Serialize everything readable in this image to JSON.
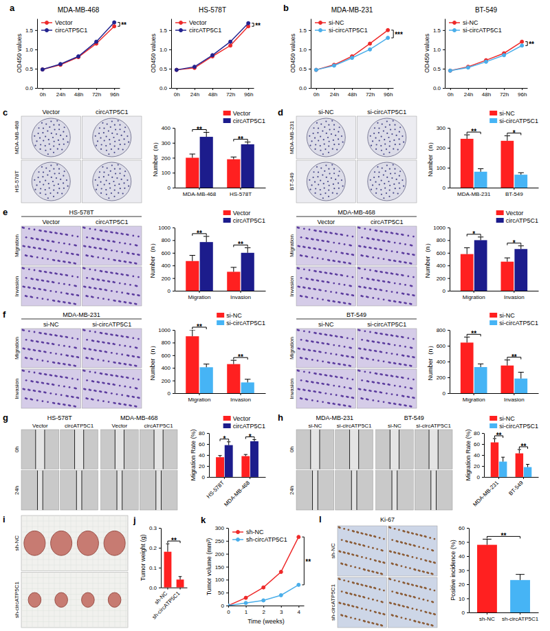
{
  "chart_data": [
    {
      "letter": "a",
      "type": "line",
      "title": "MDA-MB-468",
      "y_label": "OD450 values",
      "categories": [
        "0h",
        "24h",
        "48h",
        "72h",
        "96h"
      ],
      "ylim": [
        0,
        1.8
      ],
      "yticks": [
        {
          "value": 0,
          "label": "0.0"
        },
        {
          "value": 0.5,
          "label": "0.5"
        },
        {
          "value": 1,
          "label": "1.0"
        },
        {
          "value": 1.5,
          "label": "1.5"
        }
      ],
      "legend": "top-left",
      "marker": "circle",
      "annotations": [
        "**"
      ],
      "series": [
        {
          "name": "Vector",
          "color": "#ee2a2a",
          "values": [
            0.48,
            0.6,
            0.8,
            1.15,
            1.6
          ]
        },
        {
          "name": "circATP5C1",
          "color": "#23238f",
          "values": [
            0.48,
            0.62,
            0.82,
            1.2,
            1.7
          ]
        }
      ]
    },
    {
      "type": "line",
      "title": "HS-578T",
      "y_label": "OD450 values",
      "categories": [
        "0h",
        "24h",
        "48h",
        "72h",
        "96h"
      ],
      "ylim": [
        0,
        1.8
      ],
      "yticks": [
        {
          "value": 0,
          "label": "0.0"
        },
        {
          "value": 0.5,
          "label": "0.5"
        },
        {
          "value": 1,
          "label": "1.0"
        },
        {
          "value": 1.5,
          "label": "1.5"
        }
      ],
      "legend": "top-left",
      "marker": "circle",
      "annotations": [
        "**"
      ],
      "series": [
        {
          "name": "Vector",
          "color": "#ee2a2a",
          "values": [
            0.47,
            0.52,
            0.82,
            1.1,
            1.6
          ]
        },
        {
          "name": "circATP5C1",
          "color": "#23238f",
          "values": [
            0.47,
            0.55,
            0.85,
            1.2,
            1.68
          ]
        }
      ]
    },
    {
      "letter": "b",
      "type": "line",
      "title": "MDA-MB-231",
      "y_label": "OD450 values",
      "categories": [
        "0h",
        "24h",
        "48h",
        "72h",
        "96h"
      ],
      "ylim": [
        0,
        1.8
      ],
      "yticks": [
        {
          "value": 0,
          "label": "0.0"
        },
        {
          "value": 0.5,
          "label": "0.5"
        },
        {
          "value": 1,
          "label": "1.0"
        },
        {
          "value": 1.5,
          "label": "1.5"
        }
      ],
      "legend": "top-left",
      "marker": "circle",
      "annotations": [
        "***"
      ],
      "series": [
        {
          "name": "si-NC",
          "color": "#ee2a2a",
          "values": [
            0.47,
            0.6,
            0.82,
            1.15,
            1.5
          ]
        },
        {
          "name": "si-circATP5C1",
          "color": "#4aaeea",
          "values": [
            0.47,
            0.58,
            0.78,
            1.0,
            1.3
          ]
        }
      ]
    },
    {
      "type": "line",
      "title": "BT-549",
      "y_label": "OD450 values",
      "categories": [
        "0h",
        "24h",
        "48h",
        "72h",
        "96h"
      ],
      "ylim": [
        0,
        1.8
      ],
      "yticks": [
        {
          "value": 0,
          "label": "0.0"
        },
        {
          "value": 0.5,
          "label": "0.5"
        },
        {
          "value": 1,
          "label": "1.0"
        },
        {
          "value": 1.5,
          "label": "1.5"
        }
      ],
      "legend": "top-left",
      "marker": "circle",
      "annotations": [
        "**"
      ],
      "series": [
        {
          "name": "si-NC",
          "color": "#ee2a2a",
          "values": [
            0.45,
            0.55,
            0.72,
            0.9,
            1.2
          ]
        },
        {
          "name": "si-circATP5C1",
          "color": "#4aaeea",
          "values": [
            0.45,
            0.53,
            0.68,
            0.85,
            1.1
          ]
        }
      ]
    },
    {
      "type": "bar",
      "y_label": "Number（n）",
      "categories": [
        "MDA-MB-468",
        "HS-578T"
      ],
      "ylim": [
        0,
        400
      ],
      "yticks": [
        0,
        100,
        200,
        300,
        400
      ],
      "legend": "top-right",
      "annotations": [
        "**",
        "**"
      ],
      "series": [
        {
          "name": "Vector",
          "color": "#ff2020",
          "values": [
            200,
            190
          ],
          "errors": [
            25,
            15
          ]
        },
        {
          "name": "circATP5C1",
          "color": "#1c1c8c",
          "values": [
            340,
            290
          ],
          "errors": [
            30,
            15
          ]
        }
      ]
    },
    {
      "type": "bar",
      "y_label": "Number（n）",
      "categories": [
        "MDA-MB-231",
        "BT-549"
      ],
      "ylim": [
        0,
        300
      ],
      "yticks": [
        0,
        100,
        200,
        300
      ],
      "legend": "top-right",
      "annotations": [
        "**",
        "*"
      ],
      "series": [
        {
          "name": "si-NC",
          "color": "#ff2020",
          "values": [
            245,
            235
          ],
          "errors": [
            20,
            25
          ]
        },
        {
          "name": "si-circATP5C1",
          "color": "#46b4f5",
          "values": [
            80,
            65
          ],
          "errors": [
            15,
            10
          ]
        }
      ]
    },
    {
      "type": "bar",
      "y_label": "Number（n）",
      "categories": [
        "Migration",
        "Invasion"
      ],
      "ylim": [
        0,
        1000
      ],
      "yticks": [
        0,
        200,
        400,
        600,
        800,
        1000
      ],
      "legend": "top-right",
      "annotations": [
        "**",
        "**"
      ],
      "series": [
        {
          "name": "Vector",
          "color": "#ff2020",
          "values": [
            470,
            300
          ],
          "errors": [
            90,
            70
          ]
        },
        {
          "name": "circATP5C1",
          "color": "#1c1c8c",
          "values": [
            770,
            600
          ],
          "errors": [
            90,
            80
          ]
        }
      ]
    },
    {
      "type": "bar",
      "y_label": "Number（n）",
      "categories": [
        "Migration",
        "Invasion"
      ],
      "ylim": [
        0,
        1000
      ],
      "yticks": [
        0,
        200,
        400,
        600,
        800,
        1000
      ],
      "legend": "top-right",
      "annotations": [
        "*",
        "*"
      ],
      "series": [
        {
          "name": "Vector",
          "color": "#ff2020",
          "values": [
            580,
            460
          ],
          "errors": [
            100,
            60
          ]
        },
        {
          "name": "circATP5C1",
          "color": "#1c1c8c",
          "values": [
            800,
            660
          ],
          "errors": [
            50,
            50
          ]
        }
      ]
    },
    {
      "type": "bar",
      "y_label": "Number（n）",
      "categories": [
        "Migration",
        "Invasion"
      ],
      "ylim": [
        0,
        1000
      ],
      "yticks": [
        0,
        200,
        400,
        600,
        800,
        1000
      ],
      "legend": "top-right",
      "annotations": [
        "**",
        "**"
      ],
      "series": [
        {
          "name": "si-NC",
          "color": "#ff2020",
          "values": [
            900,
            460
          ],
          "errors": [
            100,
            60
          ]
        },
        {
          "name": "si-circATP5C1",
          "color": "#46b4f5",
          "values": [
            410,
            170
          ],
          "errors": [
            50,
            50
          ]
        }
      ]
    },
    {
      "type": "bar",
      "y_label": "Number（n）",
      "categories": [
        "Migration",
        "Invasion"
      ],
      "ylim": [
        0,
        800
      ],
      "yticks": [
        0,
        200,
        400,
        600,
        800
      ],
      "legend": "top-right",
      "annotations": [
        "**",
        "**"
      ],
      "series": [
        {
          "name": "si-NC",
          "color": "#ff2020",
          "values": [
            640,
            350
          ],
          "errors": [
            70,
            70
          ]
        },
        {
          "name": "si-circATP5C1",
          "color": "#46b4f5",
          "values": [
            330,
            185
          ],
          "errors": [
            40,
            80
          ]
        }
      ]
    },
    {
      "type": "bar",
      "y_label": "Migration Rate (%)",
      "categories": [
        "HS-578T",
        "MDA-MB-468"
      ],
      "ylim": [
        0,
        80
      ],
      "yticks": [
        0,
        20,
        40,
        60,
        80
      ],
      "legend": "top-right",
      "annotations": [
        "*",
        "*"
      ],
      "series": [
        {
          "name": "Vector",
          "color": "#ff2020",
          "values": [
            36,
            38
          ],
          "errors": [
            3,
            3
          ]
        },
        {
          "name": "circATP5C1",
          "color": "#1c1c8c",
          "values": [
            58,
            65
          ],
          "errors": [
            6,
            3
          ]
        }
      ]
    },
    {
      "type": "bar",
      "y_label": "Migration Rate (%)",
      "categories": [
        "MDA-MB-231",
        "BT-549"
      ],
      "ylim": [
        0,
        80
      ],
      "yticks": [
        0,
        20,
        40,
        60,
        80
      ],
      "legend": "top-right",
      "annotations": [
        "**",
        "**"
      ],
      "series": [
        {
          "name": "si-NC",
          "color": "#ff2020",
          "values": [
            63,
            43
          ],
          "errors": [
            7,
            7
          ]
        },
        {
          "name": "si-circATP5C1",
          "color": "#46b4f5",
          "values": [
            28,
            18
          ],
          "errors": [
            8,
            5
          ]
        }
      ]
    },
    {
      "letter": "j",
      "type": "bar",
      "y_label": "Tumor weight (g)",
      "categories": [
        "sh-NC",
        "sh-circATP5C1"
      ],
      "values": [
        0.18,
        0.04
      ],
      "errors": [
        0.04,
        0.015
      ],
      "color": "#ff2020",
      "ylim": [
        0,
        0.3
      ],
      "yticks": [
        {
          "value": 0,
          "label": "0.0"
        },
        {
          "value": 0.1,
          "label": "0.1"
        },
        {
          "value": 0.2,
          "label": "0.2"
        },
        {
          "value": 0.3,
          "label": "0.3"
        }
      ],
      "annotations": [
        "**"
      ]
    },
    {
      "letter": "k",
      "type": "line",
      "y_label": "Tumor volume (mm³)",
      "x_label": "Time (weeks)",
      "x": [
        0,
        1,
        2,
        3,
        4
      ],
      "xlim": [
        0,
        4.3
      ],
      "xticks": [
        0,
        1,
        2,
        3,
        4
      ],
      "ylim": [
        0,
        300
      ],
      "yticks": [
        0,
        50,
        100,
        150,
        200,
        250,
        300
      ],
      "legend": "top-left",
      "marker": "circle",
      "annotations": [
        "**"
      ],
      "series": [
        {
          "name": "sh-NC",
          "color": "#ee2a2a",
          "values": [
            0,
            30,
            70,
            130,
            265
          ]
        },
        {
          "name": "sh-circATP5C1",
          "color": "#4aaeea",
          "values": [
            0,
            10,
            20,
            40,
            80
          ]
        }
      ]
    },
    {
      "type": "bar",
      "y_label": "Positive incidence (%)",
      "categories": [
        "sh-NC",
        "sh-circATP5C1"
      ],
      "values": [
        48,
        23
      ],
      "errors": [
        4,
        4
      ],
      "colors": [
        "#ff2020",
        "#46b4f5"
      ],
      "ylim": [
        0,
        60
      ],
      "yticks": [
        0,
        10,
        20,
        30,
        40,
        50,
        60
      ],
      "annotations": [
        "**"
      ]
    }
  ],
  "images": [
    {
      "letter": "c",
      "columns": [
        "Vector",
        "circATP5C1"
      ],
      "rows": [
        "MDA-MB-468",
        "HS-578T"
      ]
    },
    {
      "letter": "d",
      "columns": [
        "si-NC",
        "si-circATP5C1"
      ],
      "rows": [
        "MDA-MB-231",
        "BT-549"
      ]
    },
    {
      "letter": "e",
      "title": "HS-578T",
      "columns": [
        "Vector",
        "circATP5C1"
      ],
      "rows": [
        "Migration",
        "Invasion"
      ]
    },
    {
      "title": "MDA-MB-468",
      "columns": [
        "Vector",
        "circATP5C1"
      ],
      "rows": [
        "Migration",
        "Invasion"
      ]
    },
    {
      "letter": "f",
      "title": "MDA-MB-231",
      "columns": [
        "si-NC",
        "si-circATP5C1"
      ],
      "rows": [
        "Migration",
        "Invasion"
      ]
    },
    {
      "title": "BT-549",
      "columns": [
        "si-NC",
        "si-circATP5C1"
      ],
      "rows": [
        "Migration",
        "Invasion"
      ]
    },
    {
      "letter": "g",
      "groups": [
        {
          "title": "HS-578T",
          "columns": [
            "Vector",
            "circATP5C1"
          ]
        },
        {
          "title": "MDA-MB-468",
          "columns": [
            "Vector",
            "circATP5C1"
          ]
        }
      ],
      "rows": [
        "0h",
        "24h"
      ]
    },
    {
      "letter": "h",
      "groups": [
        {
          "title": "MDA-MB-231",
          "columns": [
            "si-NC",
            "si-circATP5C1"
          ]
        },
        {
          "title": "BT-549",
          "columns": [
            "si-NC",
            "si-circATP5C1"
          ]
        }
      ],
      "rows": [
        "0h",
        "24h"
      ]
    },
    {
      "letter": "i",
      "rows": [
        "sh-NC",
        "sh-circATP5C1"
      ]
    },
    {
      "letter": "l",
      "title": "Ki-67",
      "rows": [
        "sh-NC",
        "sh-circATP5C1"
      ]
    }
  ]
}
